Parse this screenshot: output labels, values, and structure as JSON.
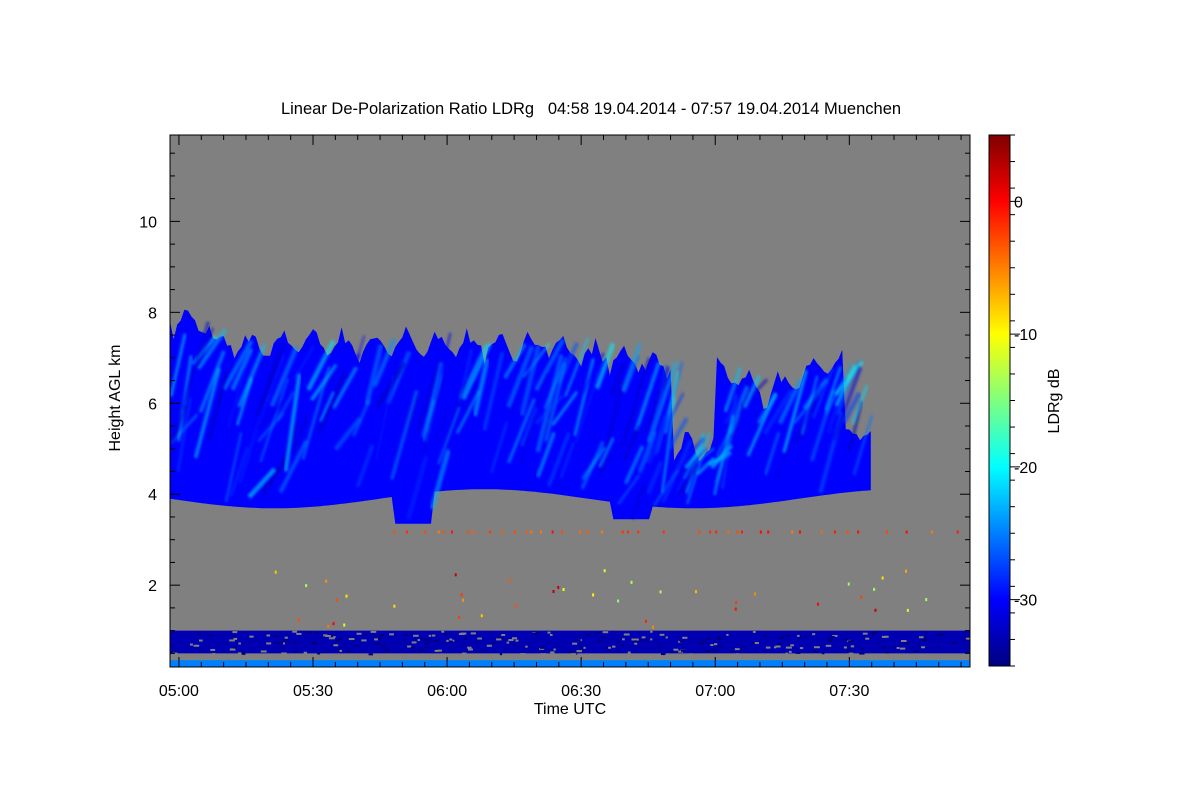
{
  "chart_data": {
    "type": "heatmap",
    "title": "Linear De-Polarization Ratio LDRg   04:58 19.04.2014 - 07:57 19.04.2014 Muenchen",
    "xlabel": "Time UTC",
    "ylabel": "Height AGL km",
    "x_range": [
      "04:58",
      "07:57"
    ],
    "x_ticks": [
      "05:00",
      "05:30",
      "06:00",
      "06:30",
      "07:00",
      "07:30"
    ],
    "ylim": [
      0.2,
      11.9
    ],
    "y_ticks": [
      2,
      4,
      6,
      8,
      10
    ],
    "colorbar": {
      "label": "LDRg dB",
      "range": [
        -35,
        5
      ],
      "ticks": [
        0,
        -10,
        -20,
        -30
      ],
      "colormap": [
        "#00007f",
        "#0000ff",
        "#007fff",
        "#00ffff",
        "#7fff7f",
        "#ffff00",
        "#ff7f00",
        "#ff0000",
        "#7f0000"
      ]
    },
    "background_color": "#808080",
    "layers": [
      {
        "name": "cirrus cloud",
        "time_range": [
          "04:58",
          "07:35"
        ],
        "height_range_km": [
          3.3,
          8.3
        ],
        "ldr_db_range": [
          -33,
          -20
        ],
        "typical_ldr_db": -30
      },
      {
        "name": "boundary layer band",
        "time_range": [
          "04:58",
          "07:57"
        ],
        "height_range_km": [
          0.5,
          1.0
        ],
        "ldr_db_range": [
          -35,
          -30
        ]
      },
      {
        "name": "near-ground band",
        "time_range": [
          "04:58",
          "07:57"
        ],
        "height_range_km": [
          0.2,
          0.35
        ],
        "ldr_db_range": [
          -35,
          -20
        ]
      },
      {
        "name": "high depolarization line",
        "time_range": [
          "05:48",
          "07:57"
        ],
        "height_range_km": [
          3.15,
          3.2
        ],
        "ldr_db_range": [
          -5,
          0
        ]
      }
    ]
  }
}
